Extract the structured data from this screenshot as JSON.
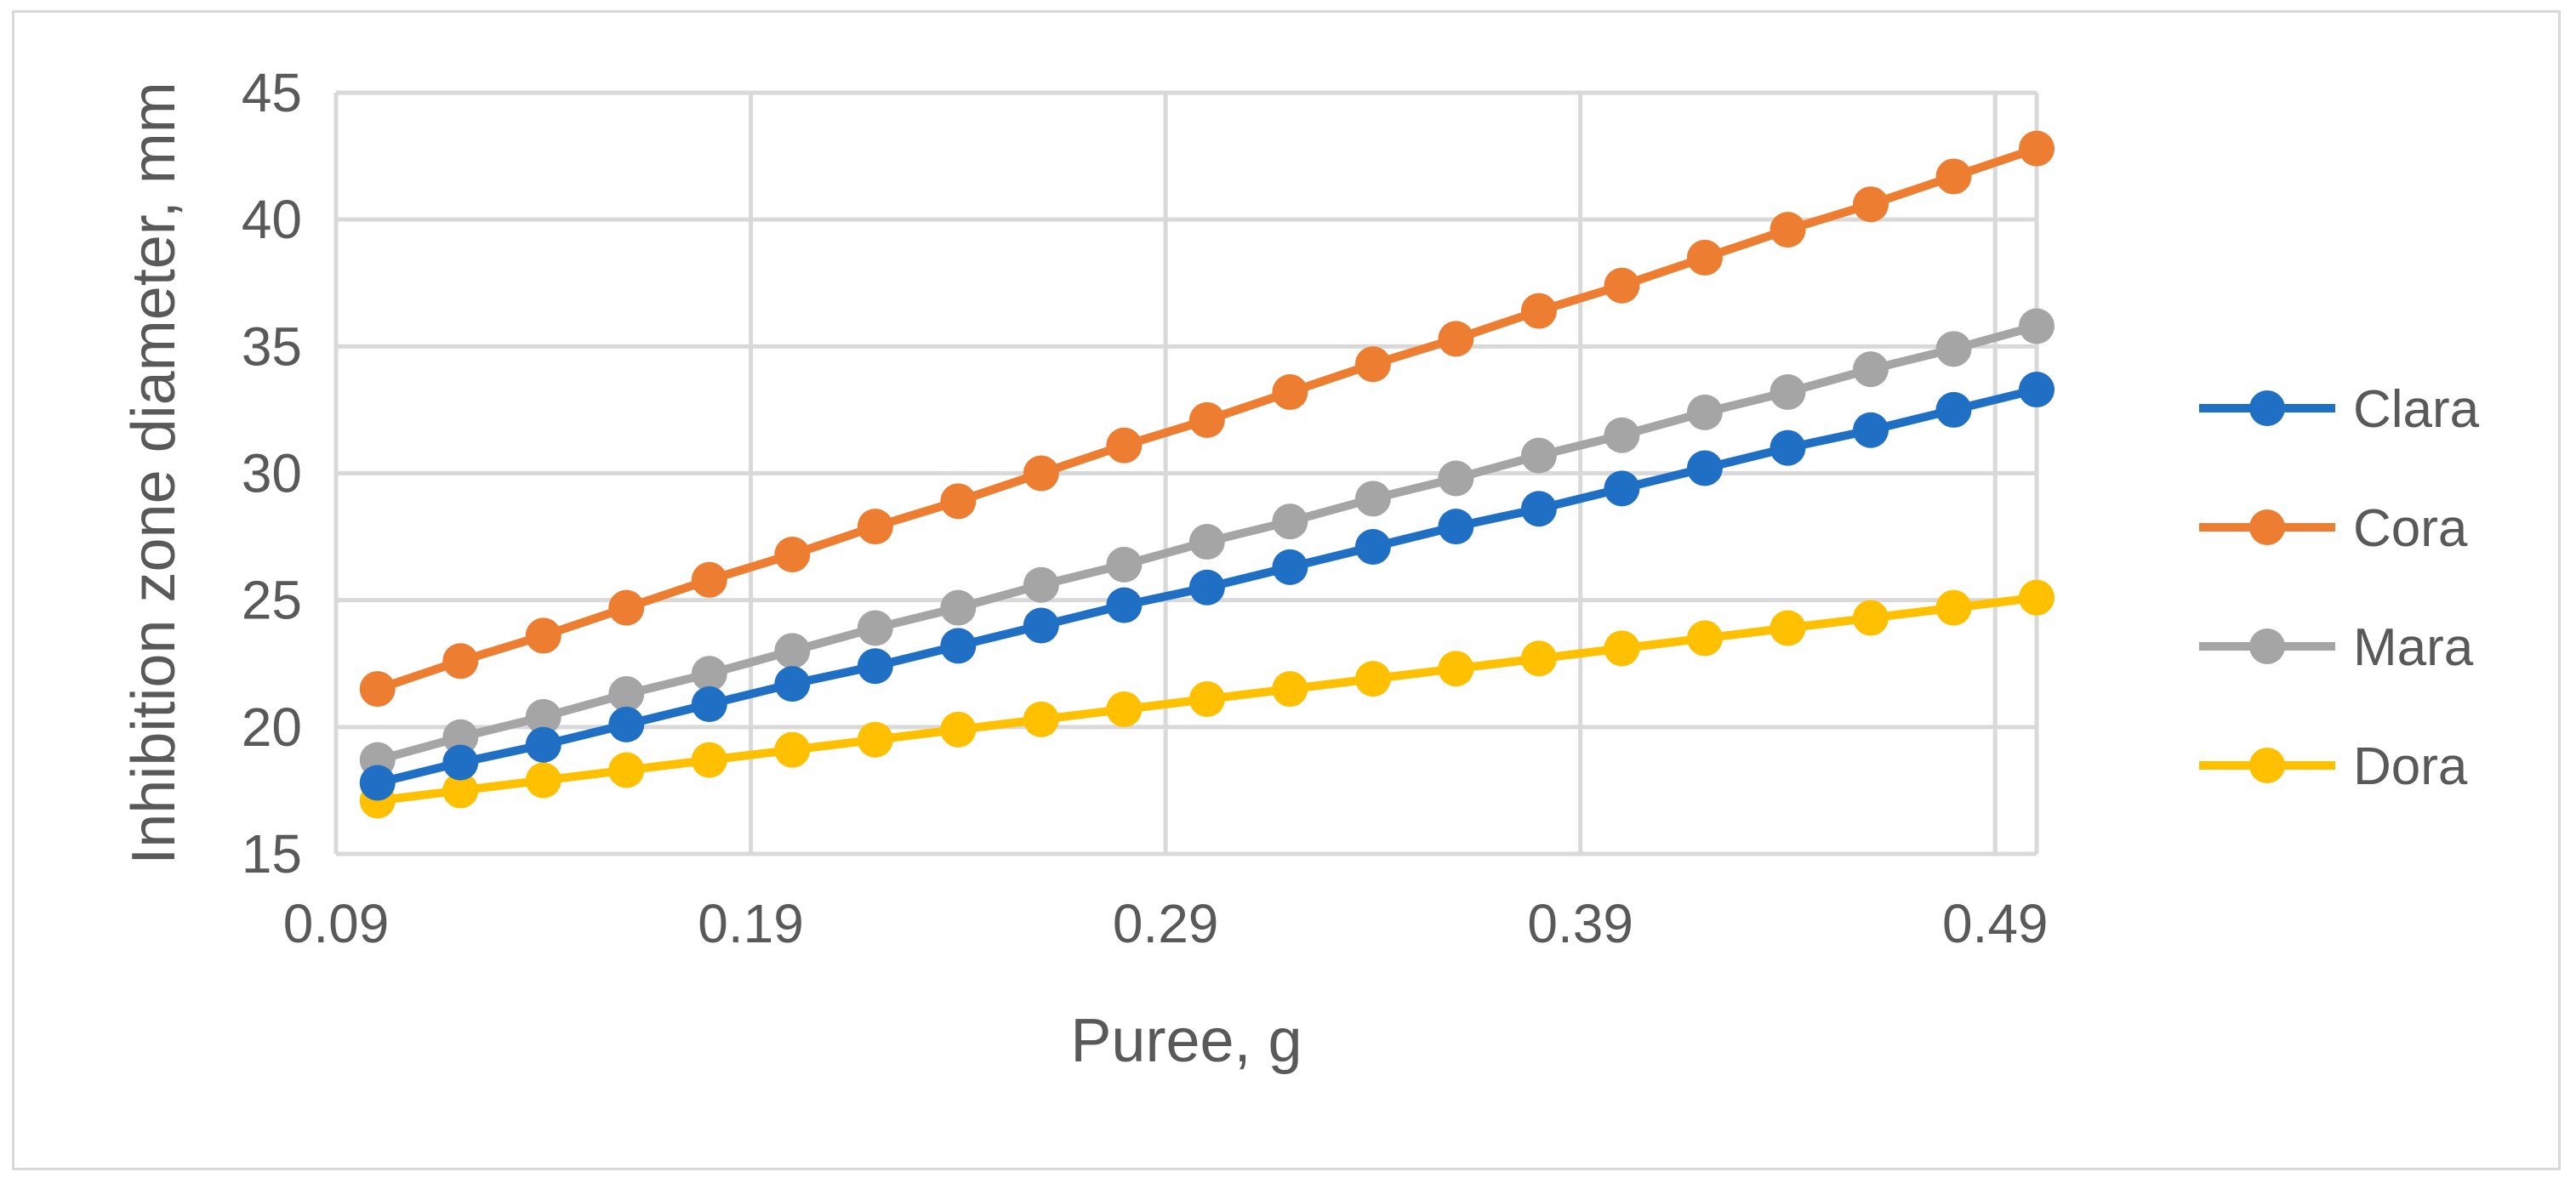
{
  "chart_data": {
    "type": "line",
    "title": "",
    "xlabel": "Puree, g",
    "ylabel": "Inhibition zone diameter,  mm",
    "xlim": [
      0.09,
      0.5
    ],
    "ylim": [
      15,
      45
    ],
    "xticks": [
      0.09,
      0.19,
      0.29,
      0.39,
      0.49
    ],
    "xtick_labels": [
      "0.09",
      "0.19",
      "0.29",
      "0.39",
      "0.49"
    ],
    "yticks": [
      15,
      20,
      25,
      30,
      35,
      40,
      45
    ],
    "ytick_labels": [
      "15",
      "20",
      "25",
      "30",
      "35",
      "40",
      "45"
    ],
    "grid": true,
    "legend_position": "right",
    "x": [
      0.1,
      0.12,
      0.14,
      0.16,
      0.18,
      0.2,
      0.22,
      0.24,
      0.26,
      0.28,
      0.3,
      0.32,
      0.34,
      0.36,
      0.38,
      0.4,
      0.42,
      0.44,
      0.46,
      0.48,
      0.5
    ],
    "series": [
      {
        "name": "Clara",
        "color": "#1f6fc5",
        "values": [
          17.8,
          18.6,
          19.3,
          20.1,
          20.9,
          21.7,
          22.4,
          23.2,
          24.0,
          24.8,
          25.5,
          26.3,
          27.1,
          27.9,
          28.6,
          29.4,
          30.2,
          31.0,
          31.7,
          32.5,
          33.3
        ]
      },
      {
        "name": "Cora",
        "color": "#ed7d31",
        "values": [
          21.5,
          22.6,
          23.6,
          24.7,
          25.8,
          26.8,
          27.9,
          28.9,
          30.0,
          31.1,
          32.1,
          33.2,
          34.3,
          35.3,
          36.4,
          37.4,
          38.5,
          39.6,
          40.6,
          41.7,
          42.8
        ]
      },
      {
        "name": "Mara",
        "color": "#a5a5a5",
        "values": [
          18.7,
          19.6,
          20.4,
          21.3,
          22.1,
          23.0,
          23.9,
          24.7,
          25.6,
          26.4,
          27.3,
          28.1,
          29.0,
          29.8,
          30.7,
          31.5,
          32.4,
          33.2,
          34.1,
          34.9,
          35.8
        ]
      },
      {
        "name": "Dora",
        "color": "#ffc000",
        "values": [
          17.1,
          17.5,
          17.9,
          18.3,
          18.7,
          19.1,
          19.5,
          19.9,
          20.3,
          20.7,
          21.1,
          21.5,
          21.9,
          22.3,
          22.7,
          23.1,
          23.5,
          23.9,
          24.3,
          24.7,
          25.1
        ]
      }
    ]
  }
}
